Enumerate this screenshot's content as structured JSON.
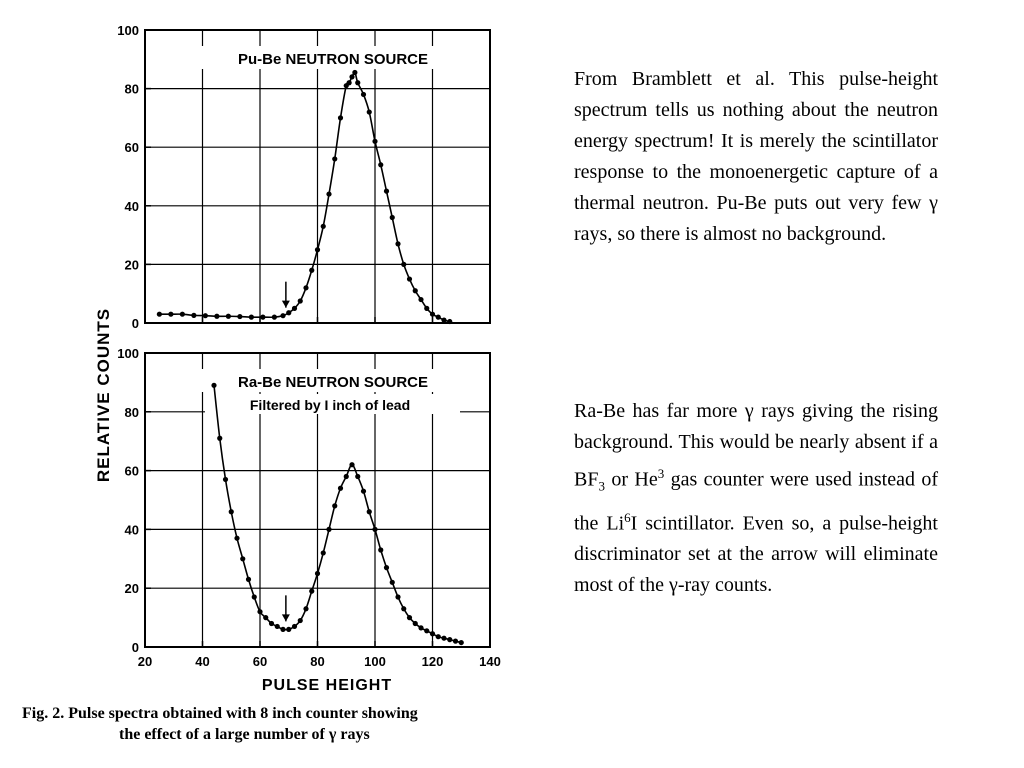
{
  "chart_data": [
    {
      "type": "scatter",
      "title": "Pu-Be NEUTRON SOURCE",
      "subtitle": "",
      "xlim": [
        20,
        140
      ],
      "ylim": [
        0,
        100
      ],
      "xticks": [
        20,
        40,
        60,
        80,
        100,
        120,
        140
      ],
      "yticks": [
        0,
        20,
        40,
        60,
        80,
        100
      ],
      "grid": true,
      "arrow_x": 69,
      "series": [
        {
          "points": [
            [
              25,
              3
            ],
            [
              29,
              3
            ],
            [
              33,
              3
            ],
            [
              37,
              2.6
            ],
            [
              41,
              2.5
            ],
            [
              45,
              2.3
            ],
            [
              49,
              2.3
            ],
            [
              53,
              2.2
            ],
            [
              57,
              2
            ],
            [
              61,
              2
            ],
            [
              65,
              2
            ],
            [
              68,
              2.5
            ],
            [
              70,
              3.5
            ],
            [
              72,
              5
            ],
            [
              74,
              7.5
            ],
            [
              76,
              12
            ],
            [
              78,
              18
            ],
            [
              80,
              25
            ],
            [
              82,
              33
            ],
            [
              84,
              44
            ],
            [
              86,
              56
            ],
            [
              88,
              70
            ],
            [
              90,
              81
            ],
            [
              91,
              82
            ],
            [
              92,
              84
            ],
            [
              93,
              85.5
            ],
            [
              94,
              82
            ],
            [
              96,
              78
            ],
            [
              98,
              72
            ],
            [
              100,
              62
            ],
            [
              102,
              54
            ],
            [
              104,
              45
            ],
            [
              106,
              36
            ],
            [
              108,
              27
            ],
            [
              110,
              20
            ],
            [
              112,
              15
            ],
            [
              114,
              11
            ],
            [
              116,
              8
            ],
            [
              118,
              5
            ],
            [
              120,
              3
            ],
            [
              122,
              2
            ],
            [
              124,
              1
            ],
            [
              126,
              0.5
            ]
          ]
        }
      ]
    },
    {
      "type": "scatter",
      "title": "Ra-Be NEUTRON SOURCE",
      "subtitle": "Filtered by I inch of lead",
      "xlim": [
        20,
        140
      ],
      "ylim": [
        0,
        100
      ],
      "xticks": [
        20,
        40,
        60,
        80,
        100,
        120,
        140
      ],
      "yticks": [
        0,
        20,
        40,
        60,
        80,
        100
      ],
      "grid": true,
      "arrow_x": 69,
      "series": [
        {
          "points": [
            [
              44,
              89
            ],
            [
              46,
              71
            ],
            [
              48,
              57
            ],
            [
              50,
              46
            ],
            [
              52,
              37
            ],
            [
              54,
              30
            ],
            [
              56,
              23
            ],
            [
              58,
              17
            ],
            [
              60,
              12
            ],
            [
              62,
              10
            ],
            [
              64,
              8
            ],
            [
              66,
              7
            ],
            [
              68,
              6
            ],
            [
              70,
              6
            ],
            [
              72,
              7
            ],
            [
              74,
              9
            ],
            [
              76,
              13
            ],
            [
              78,
              19
            ],
            [
              80,
              25
            ],
            [
              82,
              32
            ],
            [
              84,
              40
            ],
            [
              86,
              48
            ],
            [
              88,
              54
            ],
            [
              90,
              58
            ],
            [
              92,
              62
            ],
            [
              94,
              58
            ],
            [
              96,
              53
            ],
            [
              98,
              46
            ],
            [
              100,
              40
            ],
            [
              102,
              33
            ],
            [
              104,
              27
            ],
            [
              106,
              22
            ],
            [
              108,
              17
            ],
            [
              110,
              13
            ],
            [
              112,
              10
            ],
            [
              114,
              8
            ],
            [
              116,
              6.5
            ],
            [
              118,
              5.5
            ],
            [
              120,
              4.5
            ],
            [
              122,
              3.5
            ],
            [
              124,
              3
            ],
            [
              126,
              2.5
            ],
            [
              128,
              2
            ],
            [
              130,
              1.5
            ]
          ]
        }
      ]
    }
  ],
  "axes": {
    "ylabel": "RELATIVE COUNTS",
    "xlabel": "PULSE HEIGHT",
    "xtick_labels": [
      "20",
      "40",
      "60",
      "80",
      "100",
      "120",
      "140"
    ],
    "top_ytick_labels": [
      "0",
      "20",
      "40",
      "60",
      "80",
      "100"
    ],
    "bottom_ytick_labels": [
      "0",
      "20",
      "40",
      "60",
      "80",
      "100"
    ]
  },
  "caption": {
    "line1": "Fig. 2. Pulse spectra obtained with 8 inch counter showing",
    "line2": "the effect of a large number of γ rays"
  },
  "paragraphs": {
    "p1": "From Bramblett et al. This pulse-height spectrum tells us nothing about the neutron energy spectrum! It is merely the scintillator response to the monoenergetic capture of a thermal neutron. Pu-Be puts out very few γ rays, so there is almost no background.",
    "p2": {
      "a": "Ra-Be has far more γ rays giving the rising background. This would be nearly absent if a BF",
      "sub1": "3",
      "b": " or He",
      "sup1": "3",
      "c": " gas counter were used instead of the Li",
      "sup2": "6",
      "d": "I scintillator. Even so, a pulse-height discriminator set at the arrow will eliminate most of the γ-ray counts."
    }
  }
}
